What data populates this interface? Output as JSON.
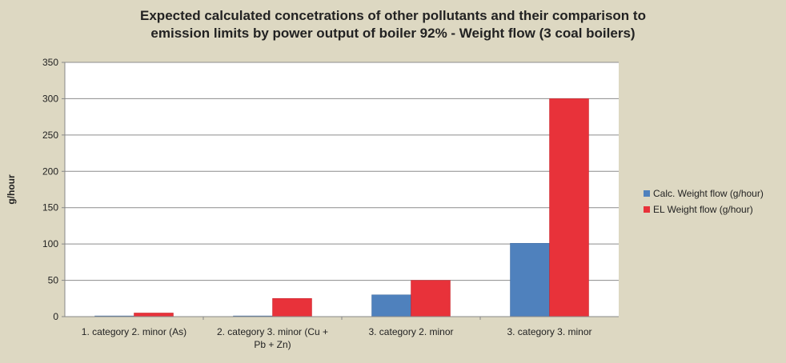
{
  "chart_data": {
    "type": "bar",
    "title_lines": [
      "Expected calculated concetrations of other pollutants  and their comparison to",
      "emission limits by power output of boiler 92% - Weight flow (3 coal boilers)"
    ],
    "ylabel": "g/hour",
    "ylim": [
      0,
      350
    ],
    "yticks": [
      0,
      50,
      100,
      150,
      200,
      250,
      300,
      350
    ],
    "grid": true,
    "legend_position": "right",
    "categories": [
      [
        "1. category 2. minor (As)"
      ],
      [
        "2. category 3. minor (Cu +",
        "Pb + Zn)"
      ],
      [
        "3. category 2. minor"
      ],
      [
        "3. category 3. minor"
      ]
    ],
    "series": [
      {
        "name": "Calc. Weight flow (g/hour)",
        "color": "#4f81bd",
        "values": [
          1,
          1,
          30,
          101
        ]
      },
      {
        "name": "EL Weight flow (g/hour)",
        "color": "#e8323a",
        "values": [
          5,
          25,
          50,
          300
        ]
      }
    ]
  }
}
